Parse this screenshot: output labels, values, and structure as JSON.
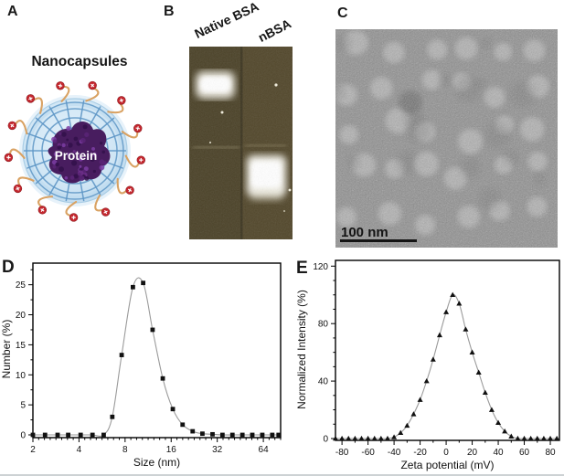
{
  "figure": {
    "panels": {
      "a": {
        "label": "A",
        "title": "Nanocapsules",
        "protein_label": "Protein",
        "colors": {
          "shell_outer": "#e7f2fa",
          "shell_fill": "#cfe5f4",
          "web_line": "#5e96c6",
          "protein_dark": "#481d5f",
          "protein_light": "#6d2f8a",
          "ring_red": "#c4272e",
          "tail_orange": "#d9a263"
        }
      },
      "b": {
        "label": "B",
        "lane_labels": [
          "Native BSA",
          "nBSA"
        ],
        "gel_bg": "#4b4228",
        "band_color": "#f7f5ec"
      },
      "c": {
        "label": "C",
        "scalebar_text": "100 nm"
      },
      "d": {
        "label": "D"
      },
      "e": {
        "label": "E"
      }
    }
  },
  "chart_data": [
    {
      "type": "scatter",
      "panel": "D",
      "marker": "square",
      "title": "",
      "xlabel": "Size (nm)",
      "ylabel": "Number (%)",
      "xscale": "log",
      "xlim": [
        2,
        83
      ],
      "ylim": [
        0,
        28.6
      ],
      "xticks": [
        2,
        4,
        8,
        16,
        32,
        64
      ],
      "yticks": [
        0,
        5,
        10,
        15,
        20,
        25
      ],
      "line_color": "#9a9a9a",
      "marker_color": "#111111",
      "x": [
        2.0,
        2.4,
        2.9,
        3.4,
        4.1,
        4.9,
        5.8,
        6.6,
        7.6,
        9.0,
        10.5,
        12.1,
        14.1,
        16.4,
        19.0,
        22.1,
        25.6,
        29.8,
        34.6,
        40.2,
        46.7,
        54.2,
        63.0,
        73.2,
        80.5
      ],
      "y": [
        0,
        0,
        0,
        0,
        0,
        0,
        0,
        3.0,
        13.3,
        24.6,
        25.3,
        17.5,
        9.4,
        4.3,
        1.7,
        0.6,
        0.2,
        0.1,
        0,
        0,
        0,
        0,
        0,
        0,
        0
      ]
    },
    {
      "type": "scatter",
      "panel": "E",
      "marker": "triangle",
      "title": "",
      "xlabel": "Zeta potential (mV)",
      "ylabel": "Normalized Intensity (%)",
      "xscale": "linear",
      "xlim": [
        -85,
        87
      ],
      "ylim": [
        0,
        124
      ],
      "xticks": [
        -80,
        -60,
        -40,
        -20,
        0,
        20,
        40,
        60,
        80
      ],
      "yticks": [
        0,
        40,
        80,
        120
      ],
      "line_color": "#9a9a9a",
      "marker_color": "#111111",
      "x": [
        -85,
        -80,
        -75,
        -70,
        -65,
        -60,
        -55,
        -50,
        -45,
        -40,
        -35,
        -30,
        -25,
        -20,
        -15,
        -10,
        -5,
        0,
        5,
        10,
        15,
        20,
        25,
        30,
        35,
        40,
        45,
        50,
        55,
        60,
        65,
        70,
        75,
        80,
        85
      ],
      "y": [
        0,
        0,
        0,
        0,
        0,
        0,
        0,
        0,
        0,
        1,
        4,
        9,
        17,
        27,
        40,
        55,
        72,
        88,
        100,
        94,
        76,
        60,
        46,
        32,
        20,
        11,
        5,
        1.5,
        0,
        0,
        0,
        0,
        0,
        0,
        0
      ]
    }
  ]
}
